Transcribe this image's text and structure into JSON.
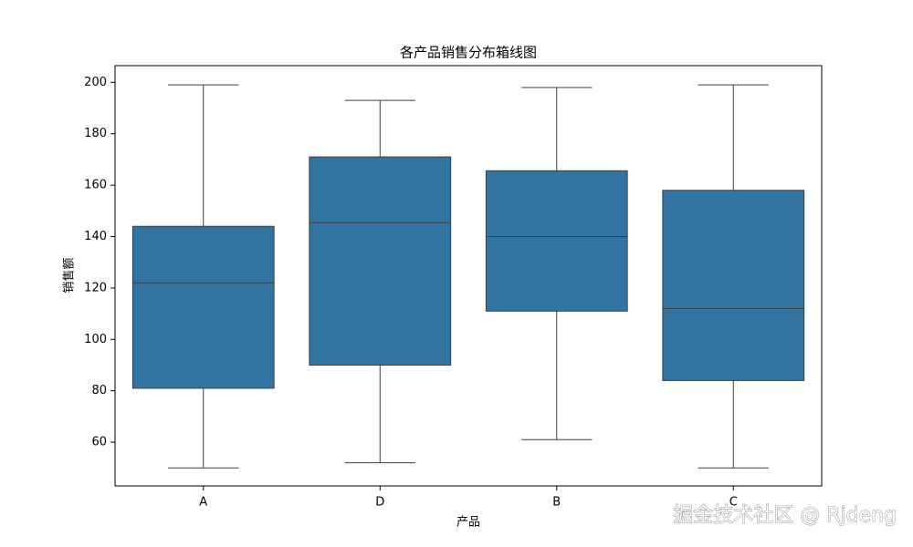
{
  "chart_data": {
    "type": "box",
    "title": "各产品销售分布箱线图",
    "x_label": "产品",
    "y_label": "销售额",
    "categories": [
      "A",
      "D",
      "B",
      "C"
    ],
    "color": "#3274a1",
    "boxes": [
      {
        "min": 50,
        "q1": 81,
        "median": 122,
        "q3": 144,
        "max": 199
      },
      {
        "min": 52,
        "q1": 90,
        "median": 145.4,
        "q3": 171,
        "max": 193
      },
      {
        "min": 61,
        "q1": 111,
        "median": 140,
        "q3": 165.6,
        "max": 198
      },
      {
        "min": 50,
        "q1": 84,
        "median": 112,
        "q3": 158,
        "max": 199
      }
    ],
    "ylim": [
      43,
      206.5
    ],
    "yticks": [
      60,
      80,
      100,
      120,
      140,
      160,
      180,
      200
    ]
  },
  "watermark": "掘金技术社区 @ Rjdeng"
}
